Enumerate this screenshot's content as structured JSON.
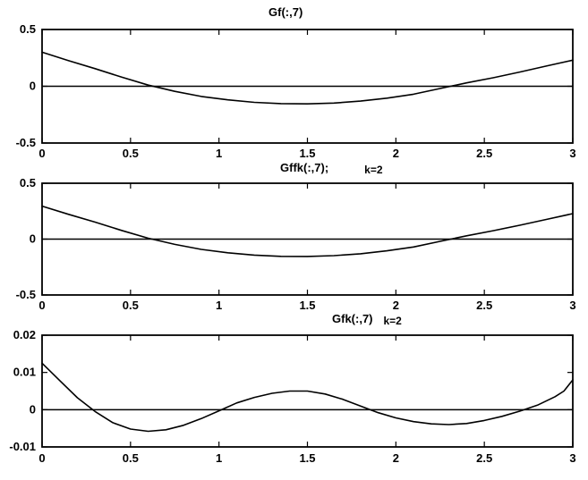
{
  "figure": {
    "background": "#ffffff",
    "line_color": "#000000"
  },
  "chart_data": [
    {
      "type": "line",
      "title": "Gf(:,7)",
      "annotation": "",
      "xlim": [
        0,
        3
      ],
      "ylim": [
        -0.5,
        0.5
      ],
      "xticks": [
        0,
        0.5,
        1,
        1.5,
        2,
        2.5,
        3
      ],
      "xtick_labels": [
        "0",
        "0.5",
        "1",
        "1.5",
        "2",
        "2.5",
        "3"
      ],
      "yticks": [
        -0.5,
        0,
        0.5
      ],
      "ytick_labels": [
        "-0.5",
        "0",
        "0.5"
      ],
      "grid": false,
      "zero_line": true,
      "series": [
        {
          "name": "Gf(:,7)",
          "x": [
            0,
            0.15,
            0.3,
            0.45,
            0.6,
            0.75,
            0.9,
            1.05,
            1.2,
            1.35,
            1.5,
            1.65,
            1.8,
            1.95,
            2.1,
            2.25,
            2.4,
            2.55,
            2.7,
            2.85,
            3
          ],
          "y": [
            0.3,
            0.225,
            0.155,
            0.08,
            0.01,
            -0.045,
            -0.09,
            -0.12,
            -0.142,
            -0.153,
            -0.155,
            -0.148,
            -0.131,
            -0.105,
            -0.07,
            -0.02,
            0.03,
            0.075,
            0.125,
            0.178,
            0.23
          ]
        }
      ]
    },
    {
      "type": "line",
      "title": "Gffk(:,7);",
      "annotation": "k=2",
      "xlim": [
        0,
        3
      ],
      "ylim": [
        -0.5,
        0.5
      ],
      "xticks": [
        0,
        0.5,
        1,
        1.5,
        2,
        2.5,
        3
      ],
      "xtick_labels": [
        "0",
        "0.5",
        "1",
        "1.5",
        "2",
        "2.5",
        "3"
      ],
      "yticks": [
        -0.5,
        0,
        0.5
      ],
      "ytick_labels": [
        "-0.5",
        "0",
        "0.5"
      ],
      "grid": false,
      "zero_line": true,
      "series": [
        {
          "name": "Gffk(:,7)",
          "x": [
            0,
            0.15,
            0.3,
            0.45,
            0.6,
            0.75,
            0.9,
            1.05,
            1.2,
            1.35,
            1.5,
            1.65,
            1.8,
            1.95,
            2.1,
            2.25,
            2.4,
            2.55,
            2.7,
            2.85,
            3
          ],
          "y": [
            0.295,
            0.222,
            0.152,
            0.078,
            0.008,
            -0.047,
            -0.092,
            -0.122,
            -0.143,
            -0.154,
            -0.155,
            -0.148,
            -0.131,
            -0.105,
            -0.07,
            -0.02,
            0.03,
            0.075,
            0.124,
            0.176,
            0.228
          ]
        }
      ]
    },
    {
      "type": "line",
      "title": "Gfk(:,7)",
      "annotation": "k=2",
      "xlim": [
        0,
        3
      ],
      "ylim": [
        -0.01,
        0.02
      ],
      "xticks": [
        0,
        0.5,
        1,
        1.5,
        2,
        2.5,
        3
      ],
      "xtick_labels": [
        "0",
        "0.5",
        "1",
        "1.5",
        "2",
        "2.5",
        "3"
      ],
      "yticks": [
        -0.01,
        0,
        0.01,
        0.02
      ],
      "ytick_labels": [
        "-0.01",
        "0",
        "0.01",
        "0.02"
      ],
      "grid": false,
      "zero_line": true,
      "series": [
        {
          "name": "Gfk(:,7)",
          "x": [
            0,
            0.1,
            0.2,
            0.3,
            0.4,
            0.5,
            0.6,
            0.7,
            0.8,
            0.9,
            1.0,
            1.1,
            1.2,
            1.3,
            1.4,
            1.5,
            1.6,
            1.7,
            1.8,
            1.9,
            2.0,
            2.1,
            2.2,
            2.3,
            2.4,
            2.5,
            2.6,
            2.7,
            2.8,
            2.9,
            2.95,
            3.0
          ],
          "y": [
            0.0125,
            0.0078,
            0.0032,
            -0.0005,
            -0.0035,
            -0.0052,
            -0.0058,
            -0.0054,
            -0.0042,
            -0.0024,
            -0.0003,
            0.0018,
            0.0033,
            0.0044,
            0.005,
            0.005,
            0.0042,
            0.0028,
            0.001,
            -0.0008,
            -0.0022,
            -0.0032,
            -0.0038,
            -0.004,
            -0.0037,
            -0.0029,
            -0.0018,
            -0.0004,
            0.0012,
            0.0035,
            0.005,
            0.008
          ]
        }
      ]
    }
  ]
}
